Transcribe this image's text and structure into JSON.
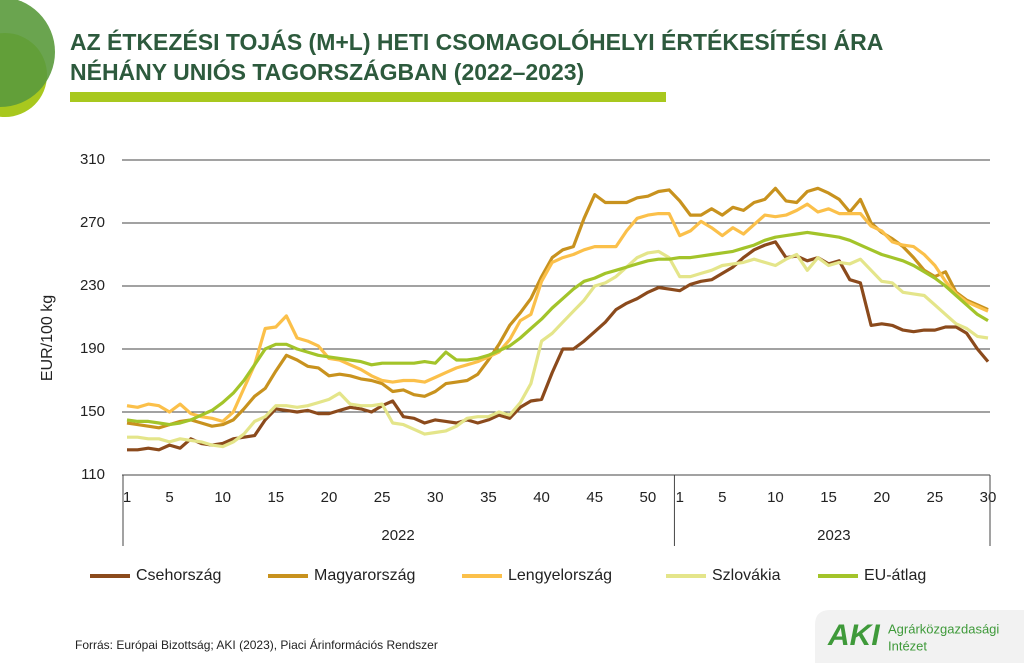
{
  "chart_data": {
    "type": "line",
    "title": [
      "AZ ÉTKEZÉSI TOJÁS (M+L) HETI CSOMAGOLÓHELYI ÉRTÉKESÍTÉSI ÁRA",
      "NÉHÁNY UNIÓS TAGORSZÁGBAN (2022–2023)"
    ],
    "y_label": "EUR/100 kg",
    "ylim": [
      110,
      310
    ],
    "yticks": [
      110,
      150,
      190,
      230,
      270,
      310
    ],
    "grid": true,
    "legend": "bottom",
    "categories": [
      "1",
      null,
      null,
      null,
      "5",
      null,
      null,
      null,
      null,
      "10",
      null,
      null,
      null,
      null,
      "15",
      null,
      null,
      null,
      null,
      "20",
      null,
      null,
      null,
      null,
      "25",
      null,
      null,
      null,
      null,
      "30",
      null,
      null,
      null,
      null,
      "35",
      null,
      null,
      null,
      null,
      "40",
      null,
      null,
      null,
      null,
      "45",
      null,
      null,
      null,
      null,
      "50",
      null,
      null,
      "1",
      null,
      null,
      null,
      "5",
      null,
      null,
      null,
      null,
      "10",
      null,
      null,
      null,
      null,
      "15",
      null,
      null,
      null,
      null,
      "20",
      null,
      null,
      null,
      null,
      "25",
      null,
      null,
      null,
      null,
      "30"
    ],
    "x_groups": [
      {
        "label": "2022",
        "count": 52
      },
      {
        "label": "2023",
        "count": 30
      }
    ],
    "series": [
      {
        "name": "Csehország",
        "color": "#8b4a1c",
        "values": [
          126,
          126,
          127,
          126,
          129,
          127,
          133,
          130,
          129,
          130,
          133,
          134,
          135,
          145,
          152,
          151,
          150,
          151,
          149,
          149,
          151,
          153,
          152,
          150,
          154,
          157,
          147,
          146,
          143,
          145,
          144,
          143,
          145,
          143,
          145,
          148,
          146,
          153,
          157,
          158,
          175,
          190,
          190,
          195,
          201,
          207,
          215,
          219,
          222,
          226,
          229,
          228,
          227,
          231,
          233,
          234,
          238,
          242,
          248,
          253,
          256,
          258,
          248,
          249,
          246,
          248,
          244,
          246,
          234,
          232,
          205,
          206,
          205,
          202,
          201,
          202,
          202,
          204,
          204,
          200,
          190,
          182
        ]
      },
      {
        "name": "Magyarország",
        "color": "#c8921e",
        "values": [
          143,
          142,
          141,
          140,
          142,
          144,
          145,
          143,
          141,
          142,
          145,
          152,
          160,
          165,
          176,
          186,
          183,
          179,
          178,
          173,
          174,
          173,
          171,
          170,
          168,
          163,
          164,
          161,
          160,
          163,
          168,
          169,
          170,
          174,
          183,
          193,
          205,
          213,
          222,
          236,
          248,
          253,
          255,
          273,
          288,
          283,
          283,
          283,
          286,
          287,
          290,
          291,
          284,
          275,
          275,
          279,
          275,
          280,
          278,
          283,
          285,
          292,
          284,
          283,
          290,
          292,
          289,
          285,
          277,
          285,
          270,
          264,
          260,
          255,
          248,
          240,
          236,
          239,
          226,
          221,
          218,
          215
        ]
      },
      {
        "name": "Lengyelország",
        "color": "#fbc04a",
        "values": [
          154,
          153,
          155,
          154,
          150,
          155,
          149,
          147,
          146,
          144,
          150,
          165,
          180,
          203,
          204,
          211,
          197,
          195,
          192,
          184,
          183,
          180,
          177,
          173,
          170,
          169,
          170,
          170,
          169,
          172,
          175,
          178,
          180,
          182,
          185,
          188,
          196,
          208,
          212,
          233,
          245,
          248,
          250,
          253,
          255,
          255,
          255,
          265,
          273,
          275,
          276,
          276,
          262,
          265,
          271,
          267,
          262,
          267,
          263,
          269,
          275,
          274,
          275,
          278,
          282,
          277,
          279,
          276,
          276,
          276,
          268,
          265,
          258,
          256,
          255,
          250,
          243,
          233,
          225,
          220,
          217,
          214
        ]
      },
      {
        "name": "Szlovákia",
        "color": "#e4e58a",
        "values": [
          134,
          134,
          133,
          133,
          131,
          133,
          132,
          131,
          129,
          128,
          131,
          136,
          144,
          147,
          154,
          154,
          153,
          154,
          156,
          158,
          162,
          155,
          154,
          154,
          155,
          143,
          142,
          139,
          136,
          137,
          138,
          141,
          146,
          147,
          147,
          150,
          148,
          156,
          168,
          195,
          200,
          207,
          214,
          221,
          230,
          232,
          236,
          242,
          248,
          251,
          252,
          248,
          236,
          236,
          238,
          240,
          243,
          244,
          245,
          247,
          245,
          243,
          247,
          250,
          240,
          248,
          243,
          245,
          244,
          247,
          240,
          233,
          232,
          226,
          225,
          224,
          218,
          212,
          206,
          203,
          198,
          197
        ]
      },
      {
        "name": "EU-átlag",
        "color": "#a3c42a",
        "values": [
          145,
          144,
          144,
          143,
          142,
          143,
          145,
          148,
          151,
          156,
          162,
          170,
          180,
          190,
          193,
          193,
          190,
          188,
          186,
          185,
          184,
          183,
          182,
          180,
          181,
          181,
          181,
          181,
          182,
          181,
          188,
          183,
          183,
          184,
          186,
          189,
          192,
          197,
          203,
          209,
          216,
          222,
          228,
          233,
          235,
          238,
          240,
          242,
          244,
          246,
          247,
          247,
          248,
          248,
          249,
          250,
          251,
          252,
          254,
          256,
          259,
          261,
          262,
          263,
          264,
          263,
          262,
          261,
          259,
          256,
          253,
          250,
          248,
          246,
          243,
          239,
          235,
          230,
          224,
          218,
          212,
          208
        ]
      }
    ]
  },
  "source": "Forrás: Európai Bizottság; AKI (2023), Piaci Árinformációs Rendszer",
  "logo": {
    "abbr": "AKI",
    "name": [
      "Agrárközgazdasági",
      "Intézet"
    ]
  }
}
